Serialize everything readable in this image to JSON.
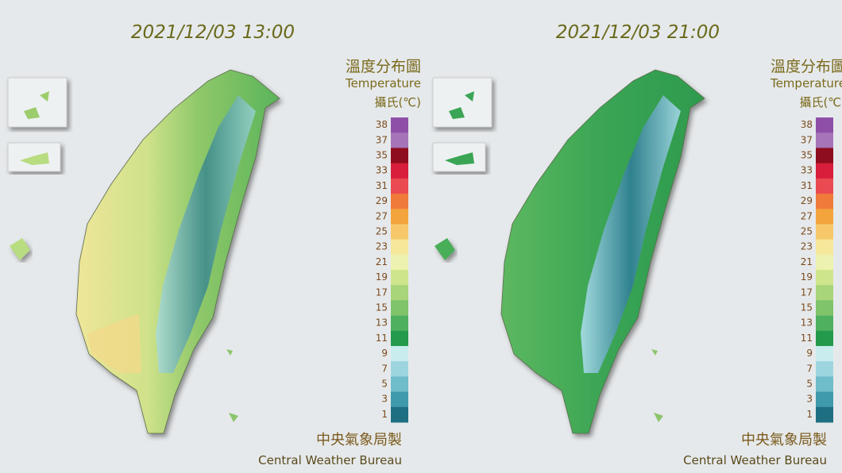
{
  "panels": [
    {
      "timestamp": "2021/12/03 13:00",
      "title": "溫度分布圖",
      "subtitle": "Temperature",
      "unit": "攝氏(℃)",
      "legend": {
        "ticks": [
          38,
          37,
          35,
          33,
          31,
          29,
          27,
          25,
          23,
          21,
          19,
          17,
          15,
          13,
          11,
          9,
          7,
          5,
          3,
          1
        ],
        "colors": [
          "#8e4fa8",
          "#a674b8",
          "#8e0d1e",
          "#d81e3a",
          "#ea4a52",
          "#ef7a3a",
          "#f4a43c",
          "#f6c86a",
          "#f6e89a",
          "#eef2b0",
          "#cfe58c",
          "#a8d47a",
          "#7fc36a",
          "#4fb060",
          "#239a4c",
          "#c9ecef",
          "#9dd5df",
          "#6fbccb",
          "#3f9aac",
          "#1f6f82"
        ]
      },
      "credit_zh": "中央氣象局製",
      "credit_en": "Central Weather Bureau",
      "scheme": "warm"
    },
    {
      "timestamp": "2021/12/03 21:00",
      "title": "溫度分布圖",
      "subtitle": "Temperature",
      "unit": "攝氏(℃)",
      "legend": {
        "ticks": [
          38,
          37,
          35,
          33,
          31,
          29,
          27,
          25,
          23,
          21,
          19,
          17,
          15,
          13,
          11,
          9,
          7,
          5,
          3,
          1
        ],
        "colors": [
          "#8e4fa8",
          "#a674b8",
          "#8e0d1e",
          "#d81e3a",
          "#ea4a52",
          "#ef7a3a",
          "#f4a43c",
          "#f6c86a",
          "#f6e89a",
          "#eef2b0",
          "#cfe58c",
          "#a8d47a",
          "#7fc36a",
          "#4fb060",
          "#239a4c",
          "#c9ecef",
          "#9dd5df",
          "#6fbccb",
          "#3f9aac",
          "#1f6f82"
        ]
      },
      "credit_zh": "中央氣象局製",
      "credit_en": "Central Weather Bureau",
      "scheme": "cool"
    }
  ]
}
